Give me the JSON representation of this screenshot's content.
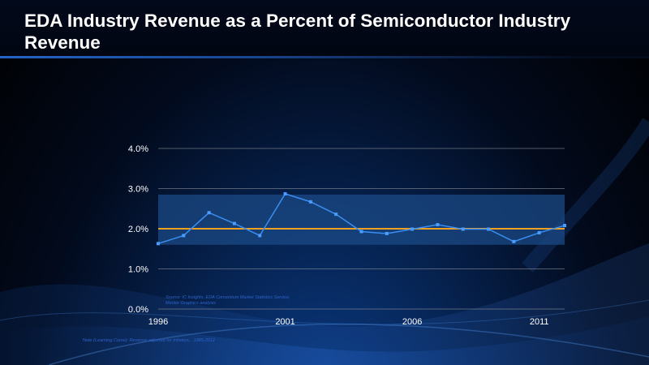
{
  "title": "EDA Industry Revenue as a Percent of Semiconductor Industry Revenue",
  "colors": {
    "series_line": "#3a8ef0",
    "marker": "#4a9cff",
    "average_line": "#f0a020",
    "band": "#1b4a86",
    "gridline": "#8a8f99"
  },
  "chart_data": {
    "type": "line",
    "title": "EDA Industry Revenue as a Percent of Semiconductor Industry Revenue",
    "xlabel": "",
    "ylabel": "",
    "x": [
      1996,
      1997,
      1998,
      1999,
      2000,
      2001,
      2002,
      2003,
      2004,
      2005,
      2006,
      2007,
      2008,
      2009,
      2010,
      2011,
      2012
    ],
    "series": [
      {
        "values": [
          1.63,
          1.83,
          2.4,
          2.13,
          1.83,
          2.87,
          2.67,
          2.36,
          1.93,
          1.88,
          1.99,
          2.1,
          1.99,
          1.99,
          1.68,
          1.9,
          2.08
        ]
      }
    ],
    "reference_line": 2.0,
    "band_range": [
      1.6,
      2.85
    ],
    "xlim": [
      1996,
      2012
    ],
    "ylim": [
      0,
      4
    ],
    "x_ticks": [
      "1996",
      "2001",
      "2006",
      "2011"
    ],
    "y_ticks": [
      "0.0%",
      "1.0%",
      "2.0%",
      "3.0%",
      "4.0%"
    ],
    "grid": true,
    "source": "Source: IC Insights, EDA Consortium Market Statistics Service, Mentor Graphics analysis",
    "note": "Note (Learning Curve): Revenue adjusted for Inflation... 1985-2012"
  }
}
